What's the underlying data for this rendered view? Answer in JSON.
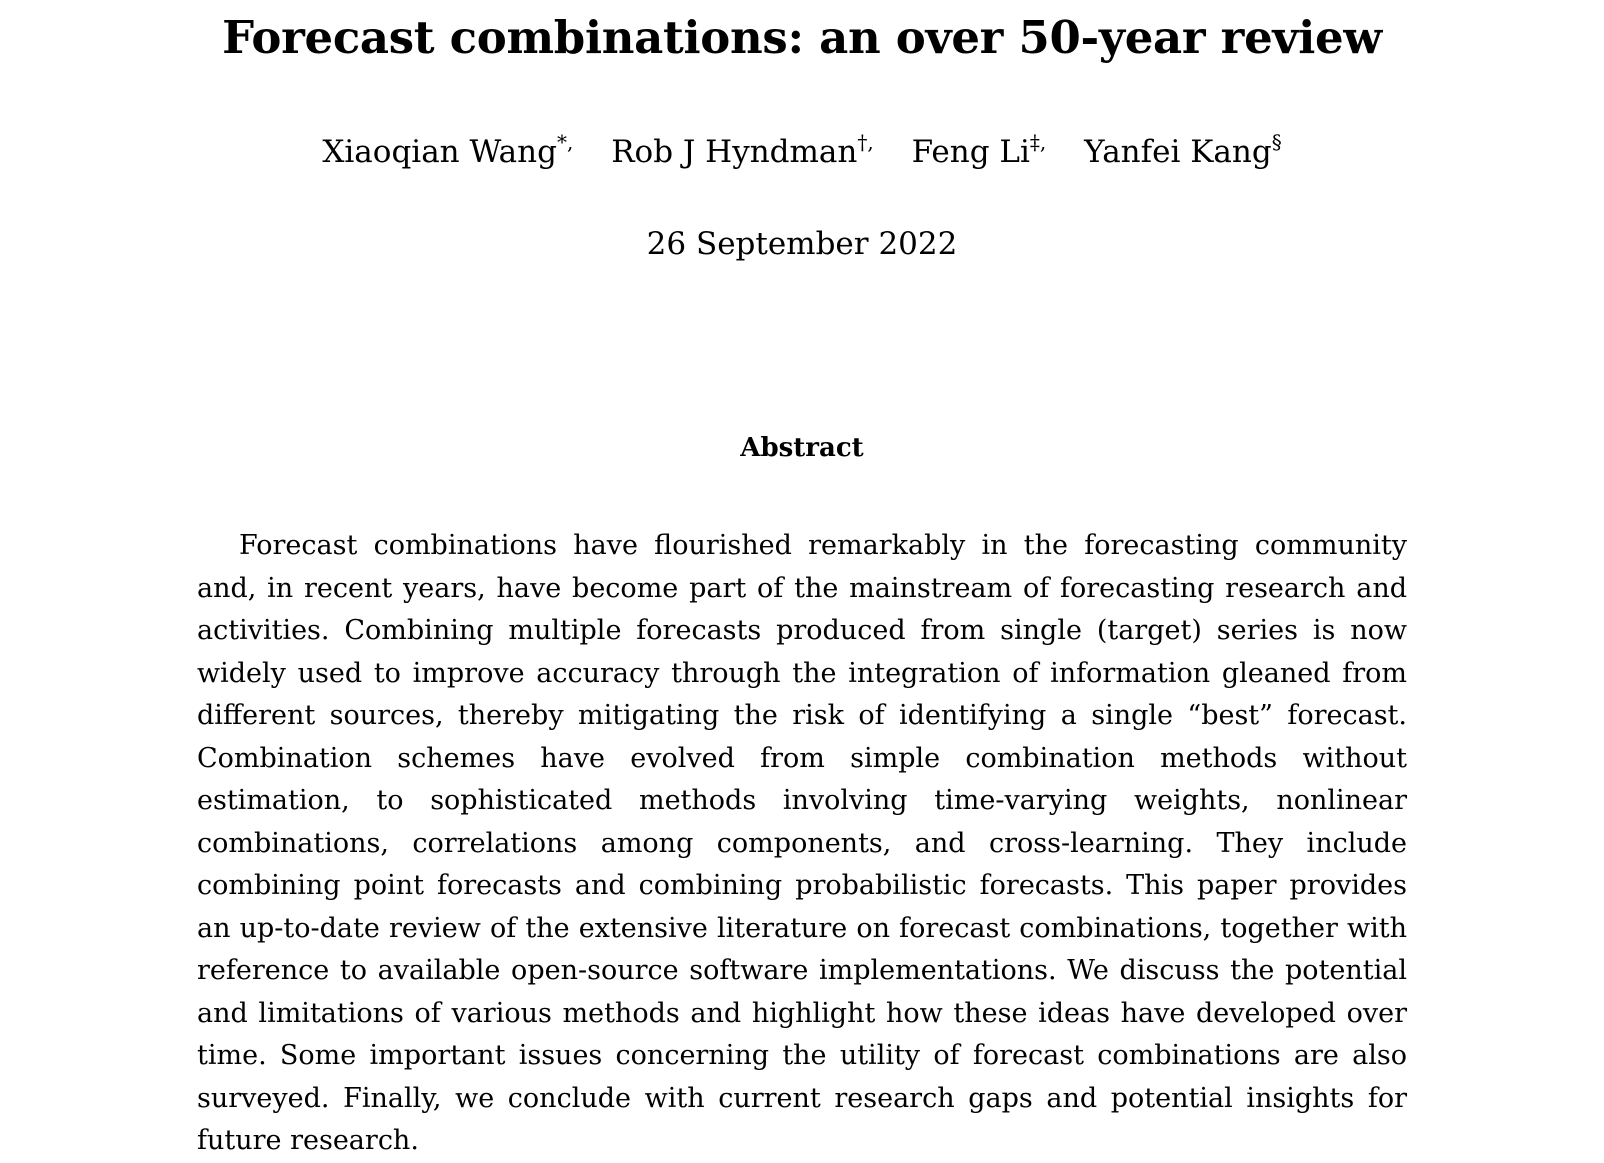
{
  "title": "Forecast combinations: an over 50-year review",
  "authors": [
    {
      "name": "Xiaoqian Wang",
      "mark": "*,"
    },
    {
      "name": "Rob J Hyndman",
      "mark": "†,"
    },
    {
      "name": "Feng Li",
      "mark": "‡,"
    },
    {
      "name": "Yanfei Kang",
      "mark": "§"
    }
  ],
  "date": "26 September 2022",
  "abstract": {
    "heading": "Abstract",
    "text": "Forecast combinations have flourished remarkably in the forecasting community and, in recent years, have become part of the mainstream of forecasting research and activities. Combining multiple forecasts produced from single (target) series is now widely used to improve accuracy through the integration of information gleaned from different sources, thereby mitigating the risk of identifying a single “best” forecast. Combination schemes have evolved from simple combination methods without estimation, to sophisticated methods involving time-varying weights, nonlinear combinations, correlations among components, and cross-learning. They include combining point forecasts and combining probabilistic forecasts. This paper provides an up-to-date review of the extensive literature on forecast combinations, together with reference to available open-source software implementations. We discuss the potential and limitations of various methods and highlight how these ideas have developed over time. Some important issues concerning the utility of forecast combinations are also surveyed. Finally, we conclude with current research gaps and potential insights for future research."
  }
}
